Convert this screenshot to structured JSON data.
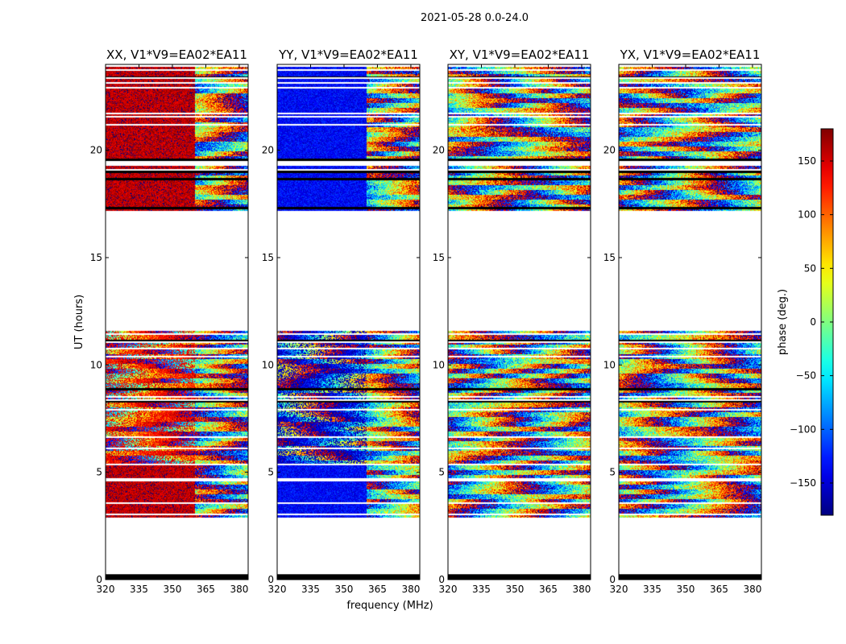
{
  "chart_data": {
    "type": "heatmap",
    "title": "2021-05-28 0.0-24.0",
    "xlabel": "frequency (MHz)",
    "ylabel": "UT (hours)",
    "xlim": [
      320,
      384
    ],
    "ylim": [
      0,
      24
    ],
    "x_ticks": [
      320,
      335,
      350,
      365,
      380
    ],
    "y_ticks": [
      0,
      5,
      10,
      15,
      20
    ],
    "panels": [
      {
        "title": "XX, V1*V9=EA02*EA11",
        "polarization": "XX",
        "low_freq_phase_deg": 160,
        "low_freq_edge_mhz": 360
      },
      {
        "title": "YY, V1*V9=EA02*EA11",
        "polarization": "YY",
        "low_freq_phase_deg": -135,
        "low_freq_edge_mhz": 360
      },
      {
        "title": "XY, V1*V9=EA02*EA11",
        "polarization": "XY",
        "low_freq_phase_deg": null,
        "low_freq_edge_mhz": null
      },
      {
        "title": "YX, V1*V9=EA02*EA11",
        "polarization": "YX",
        "low_freq_phase_deg": null,
        "low_freq_edge_mhz": null
      }
    ],
    "data_ut_ranges": [
      [
        0.0,
        0.25
      ],
      [
        2.9,
        11.6
      ],
      [
        17.2,
        23.9
      ]
    ],
    "gap_ut_ranges": [
      [
        0.25,
        2.9
      ],
      [
        11.6,
        17.2
      ]
    ],
    "colorbar": {
      "label": "phase (deg.)",
      "range": [
        -180,
        180
      ],
      "ticks": [
        -150,
        -100,
        -50,
        0,
        50,
        100,
        150
      ],
      "tick_labels": [
        "−150",
        "−100",
        "−50",
        "0",
        "50",
        "100",
        "150"
      ],
      "colormap": "jet"
    }
  }
}
